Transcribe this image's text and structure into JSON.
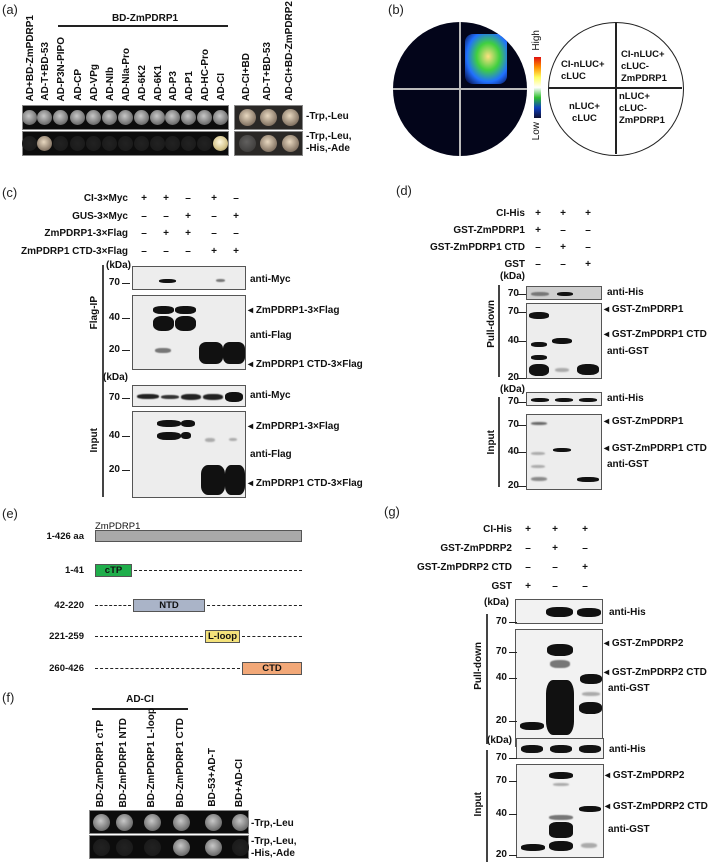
{
  "panels": {
    "a": {
      "label": "(a)",
      "group_label": "BD-ZmPDRP1",
      "columns_left": [
        "AD+BD-ZmPDRP1",
        "AD-T+BD-53",
        "AD-P3N-PIPO",
        "AD-CP",
        "AD-VPg",
        "AD-NIb",
        "AD-NIa-Pro",
        "AD-6K2",
        "AD-6K1",
        "AD-P3",
        "AD-P1",
        "AD-HC-Pro",
        "AD-CI"
      ],
      "columns_right": [
        "AD-CI+BD",
        "AD-T+BD-53",
        "AD-CI+BD-ZmPDRP2"
      ],
      "media": [
        "-Trp,-Leu",
        "-Trp,-Leu,\n-His,-Ade"
      ],
      "media_line1": "-Trp,-Leu",
      "media2_line1": "-Trp,-Leu,",
      "media2_line2": "-His,-Ade",
      "growth_selective_left": [
        false,
        true,
        false,
        false,
        false,
        false,
        false,
        false,
        false,
        false,
        false,
        false,
        true
      ],
      "growth_selective_right": [
        false,
        true,
        true
      ]
    },
    "b": {
      "label": "(b)",
      "scale_high": "High",
      "scale_low": "Low",
      "quadrants": {
        "top_left": "CI-nLUC+\ncLUC",
        "top_right": "CI-nLUC+\ncLUC-\nZmPDRP1",
        "bottom_left": "nLUC+\ncLUC",
        "bottom_right": "nLUC+\ncLUC-\nZmPDRP1"
      },
      "q_tl_1": "CI-nLUC+",
      "q_tl_2": "cLUC",
      "q_tr_1": "CI-nLUC+",
      "q_tr_2": "cLUC-",
      "q_tr_3": "ZmPDRP1",
      "q_bl_1": "nLUC+",
      "q_bl_2": "cLUC",
      "q_br_1": "nLUC+",
      "q_br_2": "cLUC-",
      "q_br_3": "ZmPDRP1"
    },
    "c": {
      "label": "(c)",
      "rows": [
        {
          "name": "CI-3×Myc",
          "values": [
            "+",
            "+",
            "–",
            "+",
            "–"
          ]
        },
        {
          "name": "GUS-3×Myc",
          "values": [
            "–",
            "–",
            "+",
            "–",
            "+"
          ]
        },
        {
          "name": "ZmPDRP1-3×Flag",
          "values": [
            "–",
            "+",
            "+",
            "–",
            "–"
          ]
        },
        {
          "name": "ZmPDRP1 CTD-3×Flag",
          "values": [
            "–",
            "–",
            "–",
            "+",
            "+"
          ]
        }
      ],
      "kda": "(kDa)",
      "section_ip": "Flag-IP",
      "section_input": "Input",
      "mw_70": "70",
      "mw_40": "40",
      "mw_20": "20",
      "anti_myc": "anti-Myc",
      "anti_flag": "anti-Flag",
      "band_full": "ZmPDRP1-3×Flag",
      "band_ctd": "ZmPDRP1 CTD-3×Flag"
    },
    "d": {
      "label": "(d)",
      "rows": [
        {
          "name": "CI-His",
          "values": [
            "+",
            "+",
            "+"
          ]
        },
        {
          "name": "GST-ZmPDRP1",
          "values": [
            "+",
            "–",
            "–"
          ]
        },
        {
          "name": "GST-ZmPDRP1 CTD",
          "values": [
            "–",
            "+",
            "–"
          ]
        },
        {
          "name": "GST",
          "values": [
            "–",
            "–",
            "+"
          ]
        }
      ],
      "kda": "(kDa)",
      "section_pd": "Pull-down",
      "section_input": "Input",
      "mw_70": "70",
      "mw_40": "40",
      "mw_20": "20",
      "anti_his": "anti-His",
      "anti_gst": "anti-GST",
      "band_full": "GST-ZmPDRP1",
      "band_ctd": "GST-ZmPDRP1 CTD"
    },
    "e": {
      "label": "(e)",
      "protein": "ZmPDRP1",
      "constructs": [
        {
          "range": "1-426 aa",
          "domain": "",
          "color": "#a9a9a9"
        },
        {
          "range": "1-41",
          "domain": "cTP",
          "color": "#1fae4b"
        },
        {
          "range": "42-220",
          "domain": "NTD",
          "color": "#aab4c8"
        },
        {
          "range": "221-259",
          "domain": "L-loop",
          "color": "#f4e27a"
        },
        {
          "range": "260-426",
          "domain": "CTD",
          "color": "#f2a878"
        }
      ]
    },
    "f": {
      "label": "(f)",
      "group_label": "AD-CI",
      "columns": [
        "BD-ZmPDRP1 cTP",
        "BD-ZmPDRP1 NTD",
        "BD-ZmPDRP1 L-loop",
        "BD-ZmPDRP1 CTD",
        "BD-53+AD-T",
        "BD+AD-CI"
      ],
      "media_line1": "-Trp,-Leu",
      "media2_line1": "-Trp,-Leu,",
      "media2_line2": "-His,-Ade",
      "growth_selective": [
        false,
        false,
        false,
        true,
        true,
        false
      ]
    },
    "g": {
      "label": "(g)",
      "rows": [
        {
          "name": "CI-His",
          "values": [
            "+",
            "+",
            "+"
          ]
        },
        {
          "name": "GST-ZmPDRP2",
          "values": [
            "–",
            "+",
            "–"
          ]
        },
        {
          "name": "GST-ZmPDRP2 CTD",
          "values": [
            "–",
            "–",
            "+"
          ]
        },
        {
          "name": "GST",
          "values": [
            "+",
            "–",
            "–"
          ]
        }
      ],
      "kda": "(kDa)",
      "section_pd": "Pull-down",
      "section_input": "Input",
      "mw_70": "70",
      "mw_40": "40",
      "mw_20": "20",
      "anti_his": "anti-His",
      "anti_gst": "anti-GST",
      "band_full": "GST-ZmPDRP2",
      "band_ctd": "GST-ZmPDRP2 CTD"
    }
  }
}
